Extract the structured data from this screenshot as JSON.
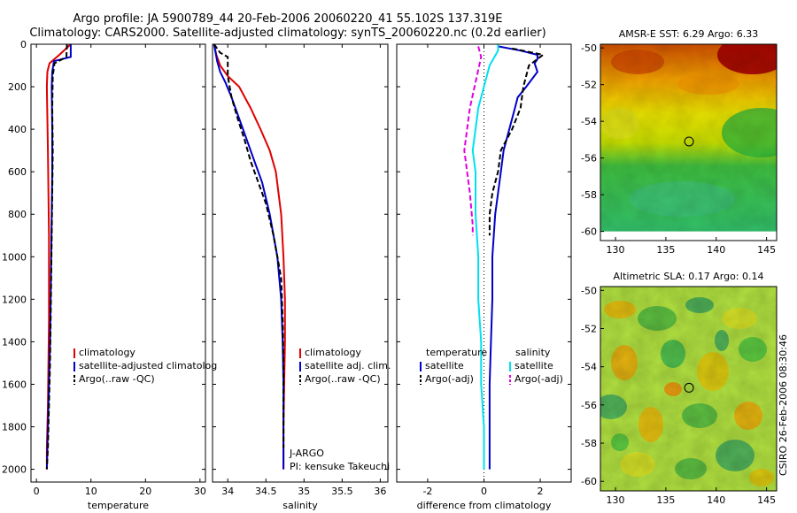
{
  "header": {
    "line1": "Argo profile: JA 5900789_44 20-Feb-2006 20060220_41 55.102S 137.319E",
    "line2": "Climatology: CARS2000. Satellite-adjusted climatology: synTS_20060220.nc (0.2d earlier)"
  },
  "credit": "CSIRO 26-Feb-2006 08:30:46",
  "colors": {
    "climatology": "#e00000",
    "satellite": "#0000c8",
    "argo": "#000000",
    "sat_salinity": "#00e0f0",
    "argo_salinity": "#e000e0"
  },
  "chart_data": [
    {
      "type": "line",
      "name": "temperature-profile",
      "xlabel": "temperature",
      "xlim": [
        -1,
        31
      ],
      "ylim": [
        2060,
        0
      ],
      "xticks": [
        0,
        10,
        20,
        30
      ],
      "yticks": [
        0,
        200,
        400,
        600,
        800,
        1000,
        1200,
        1400,
        1600,
        1800,
        2000
      ],
      "legend": {
        "placement": "bottom-right",
        "entries": [
          "climatology",
          "satellite-adjusted climatolog",
          "Argo(..raw -QC)"
        ]
      },
      "series": [
        {
          "name": "climatology",
          "color": "#e00000",
          "dash": false,
          "x": [
            6.3,
            4.2,
            2.4,
            2.0,
            1.9,
            2.0,
            2.1,
            2.2,
            2.3,
            2.3,
            2.3,
            2.2,
            2.1,
            2.0,
            1.9,
            1.9
          ],
          "y": [
            0,
            50,
            90,
            130,
            200,
            350,
            500,
            700,
            900,
            1100,
            1300,
            1500,
            1700,
            1800,
            1900,
            2000
          ]
        },
        {
          "name": "satellite-adjusted climatology",
          "color": "#0000c8",
          "dash": false,
          "x": [
            6.3,
            6.3,
            3.2,
            2.9,
            2.8,
            2.9,
            2.9,
            2.8,
            2.7,
            2.6,
            2.5,
            2.4,
            2.3,
            2.2,
            2.1,
            2.0,
            1.9
          ],
          "y": [
            0,
            60,
            80,
            130,
            200,
            400,
            600,
            800,
            1000,
            1200,
            1400,
            1500,
            1600,
            1700,
            1800,
            1900,
            2000
          ]
        },
        {
          "name": "Argo(..raw -QC)",
          "color": "#000000",
          "dash": true,
          "x": [
            5.6,
            5.5,
            3.3,
            3.0,
            2.9,
            3.0,
            2.9,
            2.8,
            2.7,
            2.6,
            2.5,
            2.4,
            2.3,
            2.2,
            2.1,
            2.0,
            1.9
          ],
          "y": [
            0,
            60,
            90,
            150,
            300,
            500,
            700,
            900,
            1100,
            1300,
            1500,
            1600,
            1700,
            1800,
            1900,
            1950,
            2000
          ]
        }
      ]
    },
    {
      "type": "line",
      "name": "salinity-profile",
      "xlabel": "salinity",
      "xlim": [
        33.8,
        36.1
      ],
      "ylim": [
        2060,
        0
      ],
      "xticks": [
        34,
        34.5,
        35,
        35.5,
        36
      ],
      "legend": {
        "placement": "bottom-right",
        "entries": [
          "climatology",
          "satellite adj. clim.",
          "Argo(..raw -QC)"
        ]
      },
      "annotations": [
        "J-ARGO",
        "PI: kensuke Takeuchi"
      ],
      "series": [
        {
          "name": "climatology",
          "color": "#e00000",
          "dash": false,
          "x": [
            33.82,
            33.85,
            33.9,
            34.0,
            34.15,
            34.3,
            34.43,
            34.55,
            34.63,
            34.7,
            34.73,
            34.75,
            34.75,
            34.74,
            34.73,
            34.73
          ],
          "y": [
            0,
            50,
            100,
            150,
            200,
            300,
            400,
            500,
            600,
            800,
            1000,
            1200,
            1400,
            1600,
            1800,
            2000
          ]
        },
        {
          "name": "satellite adj. clim.",
          "color": "#0000c8",
          "dash": false,
          "x": [
            33.82,
            33.86,
            33.9,
            33.97,
            34.05,
            34.15,
            34.25,
            34.35,
            34.45,
            34.55,
            34.65,
            34.7,
            34.72,
            34.73,
            34.73,
            34.73
          ],
          "y": [
            0,
            80,
            130,
            180,
            250,
            350,
            450,
            550,
            650,
            800,
            1000,
            1200,
            1400,
            1600,
            1800,
            2000
          ]
        },
        {
          "name": "Argo(..raw -QC)",
          "color": "#000000",
          "dash": true,
          "x": [
            33.82,
            33.9,
            34.0,
            34.0,
            34.05,
            34.13,
            34.22,
            34.3,
            34.4,
            34.5,
            34.6,
            34.7,
            34.72,
            34.73,
            34.73,
            34.73
          ],
          "y": [
            0,
            40,
            60,
            150,
            250,
            350,
            450,
            550,
            650,
            750,
            900,
            1100,
            1300,
            1500,
            1700,
            1900
          ]
        }
      ]
    },
    {
      "type": "line",
      "name": "difference-profile",
      "xlabel": "difference from climatology",
      "xlim": [
        -3.1,
        3.1
      ],
      "ylim": [
        2060,
        0
      ],
      "xticks": [
        -2,
        0,
        2
      ],
      "legend": {
        "placement": "bottom",
        "entries": [
          "temperature",
          "satellite",
          "Argo(-adj)",
          "salinity",
          "satellite",
          "Argo(-adj)"
        ]
      },
      "series": [
        {
          "name": "temperature satellite",
          "color": "#0000c8",
          "dash": false,
          "x": [
            0.5,
            1.3,
            1.9,
            1.9,
            1.8,
            1.9,
            1.5,
            1.2,
            1.1,
            1.0,
            0.9,
            0.8,
            0.7,
            0.6,
            0.5,
            0.4,
            0.3,
            0.3,
            0.25,
            0.2,
            0.2,
            0.2
          ],
          "y": [
            10,
            30,
            50,
            70,
            90,
            130,
            200,
            250,
            300,
            350,
            400,
            450,
            500,
            600,
            700,
            800,
            1000,
            1200,
            1400,
            1600,
            1800,
            2000
          ]
        },
        {
          "name": "temperature Argo(-adj)",
          "color": "#000000",
          "dash": true,
          "x": [
            1.0,
            2.1,
            1.6,
            1.4,
            1.3,
            1.0,
            0.6,
            0.5,
            0.3,
            0.2,
            0.2
          ],
          "y": [
            20,
            50,
            100,
            200,
            300,
            400,
            500,
            600,
            700,
            800,
            900
          ]
        },
        {
          "name": "salinity satellite",
          "color": "#00e0f0",
          "dash": false,
          "x": [
            0.5,
            0.5,
            0.2,
            0.0,
            -0.2,
            -0.3,
            -0.4,
            -0.3,
            -0.3,
            -0.2,
            -0.2,
            -0.1,
            -0.1,
            0.0,
            0.0
          ],
          "y": [
            0,
            30,
            100,
            200,
            300,
            400,
            500,
            600,
            800,
            1000,
            1200,
            1400,
            1600,
            1800,
            2000
          ]
        },
        {
          "name": "salinity Argo(-adj)",
          "color": "#e000e0",
          "dash": true,
          "x": [
            -0.2,
            -0.1,
            -0.5,
            -0.7,
            -0.5,
            -0.4,
            -0.4
          ],
          "y": [
            10,
            60,
            300,
            500,
            700,
            850,
            900
          ]
        }
      ]
    },
    {
      "type": "heatmap",
      "name": "amsre-sst-map",
      "title": "AMSR-E SST: 6.29 Argo: 6.33",
      "xticks": [
        130,
        135,
        140,
        145
      ],
      "yticks": [
        -50,
        -52,
        -54,
        -56,
        -58,
        -60
      ],
      "xlim": [
        128.5,
        146
      ],
      "ylim": [
        -60.5,
        -49.8
      ],
      "marker": {
        "lon": 137.3,
        "lat": -55.1
      }
    },
    {
      "type": "heatmap",
      "name": "altimetric-sla-map",
      "title": "Altimetric SLA: 0.17 Argo: 0.14",
      "xticks": [
        130,
        135,
        140,
        145
      ],
      "yticks": [
        -50,
        -52,
        -54,
        -56,
        -58,
        -60
      ],
      "xlim": [
        128.5,
        146
      ],
      "ylim": [
        -60.5,
        -49.8
      ],
      "marker": {
        "lon": 137.3,
        "lat": -55.1
      }
    }
  ]
}
